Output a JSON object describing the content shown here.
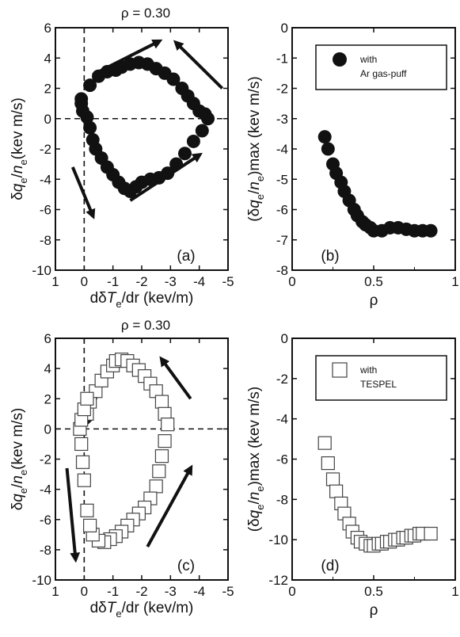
{
  "chart_data": [
    {
      "id": "a",
      "type": "scatter",
      "title": "ρ = 0.30",
      "panel_label": "(a)",
      "xlabel": {
        "p1": "dδ",
        "v": "T",
        "sub": "e",
        "p2": "/dr (kev/m)"
      },
      "ylabel": {
        "p1": "δ",
        "q": "q",
        "sub1": "e",
        "slash": "/",
        "n": "n",
        "sub2": "e",
        "p2": "(kev m/s)"
      },
      "xlim": [
        1,
        -5
      ],
      "ylim": [
        -10,
        6
      ],
      "xticks": [
        1,
        0,
        -1,
        -2,
        -3,
        -4,
        -5
      ],
      "yticks": [
        6,
        4,
        2,
        0,
        -2,
        -4,
        -6,
        -8,
        -10
      ],
      "marker": "filled-circle",
      "guides": {
        "vertical_dashed_x": 0,
        "horizontal_dashed_y": 0
      },
      "x": [
        0.1,
        -0.2,
        -0.5,
        -0.8,
        -1.1,
        -1.3,
        -1.6,
        -1.9,
        -2.2,
        -2.5,
        -2.8,
        -3.1,
        -3.4,
        -3.6,
        -3.8,
        -4.0,
        -4.2,
        -4.3,
        -4.1,
        -3.8,
        -3.5,
        -3.2,
        -2.9,
        -2.6,
        -2.3,
        -2.0,
        -1.8,
        -1.6,
        -1.4,
        -1.2,
        -1.0,
        -0.8,
        -0.6,
        -0.4,
        -0.3,
        -0.2,
        -0.1,
        0.05,
        0.1
      ],
      "y": [
        1.3,
        2.2,
        2.8,
        3.1,
        3.2,
        3.4,
        3.6,
        3.7,
        3.6,
        3.3,
        3.0,
        2.6,
        2.0,
        1.5,
        1.0,
        0.5,
        0.3,
        0.0,
        -0.8,
        -1.5,
        -2.3,
        -3.0,
        -3.6,
        -3.9,
        -4.0,
        -4.2,
        -4.5,
        -4.8,
        -4.6,
        -4.2,
        -3.7,
        -3.2,
        -2.6,
        -2.0,
        -1.4,
        -0.6,
        0.1,
        0.5,
        1.0
      ],
      "arrows": [
        {
          "from": [
            -0.3,
            2.9
          ],
          "to": [
            -2.6,
            5.1
          ]
        },
        {
          "from": [
            -4.8,
            2.0
          ],
          "to": [
            -3.2,
            5.0
          ]
        },
        {
          "from": [
            -1.6,
            -5.4
          ],
          "to": [
            -4.0,
            -2.4
          ]
        },
        {
          "from": [
            0.4,
            -3.2
          ],
          "to": [
            -0.3,
            -6.4
          ]
        }
      ]
    },
    {
      "id": "b",
      "type": "scatter",
      "panel_label": "(b)",
      "xlabel": "ρ",
      "ylabel": {
        "p1": "(δ",
        "q": "q",
        "sub1": "e",
        "slash": "/",
        "n": "n",
        "sub2": "e",
        "p2": ")max (kev m/s)"
      },
      "xlim": [
        0,
        1
      ],
      "ylim": [
        -8,
        0
      ],
      "xticks": [
        0,
        0.5,
        1
      ],
      "yticks": [
        0,
        -1,
        -2,
        -3,
        -4,
        -5,
        -6,
        -7,
        -8
      ],
      "marker": "filled-circle",
      "legend": [
        "with",
        "Ar gas-puff"
      ],
      "legend_position": "top-right",
      "x": [
        0.2,
        0.22,
        0.25,
        0.27,
        0.3,
        0.32,
        0.35,
        0.38,
        0.4,
        0.43,
        0.45,
        0.48,
        0.5,
        0.55,
        0.6,
        0.65,
        0.7,
        0.75,
        0.8,
        0.85
      ],
      "y": [
        -3.6,
        -4.0,
        -4.5,
        -4.8,
        -5.1,
        -5.4,
        -5.7,
        -6.0,
        -6.2,
        -6.4,
        -6.5,
        -6.6,
        -6.7,
        -6.7,
        -6.6,
        -6.6,
        -6.65,
        -6.7,
        -6.7,
        -6.7
      ]
    },
    {
      "id": "c",
      "type": "scatter",
      "title": "ρ = 0.30",
      "panel_label": "(c)",
      "xlabel": {
        "p1": "dδ",
        "v": "T",
        "sub": "e",
        "p2": "/dr (kev/m)"
      },
      "ylabel": {
        "p1": "δ",
        "q": "q",
        "sub1": "e",
        "slash": "/",
        "n": "n",
        "sub2": "e",
        "p2": "(kev m/s)"
      },
      "xlim": [
        1,
        -5
      ],
      "ylim": [
        -10,
        6
      ],
      "xticks": [
        1,
        0,
        -1,
        -2,
        -3,
        -4,
        -5
      ],
      "yticks": [
        6,
        4,
        2,
        0,
        -2,
        -4,
        -6,
        -8,
        -10
      ],
      "marker": "open-square",
      "guides": {
        "vertical_dashed_x": 0,
        "horizontal_dashed_y": 0
      },
      "x": [
        -0.1,
        -0.2,
        -0.4,
        -0.6,
        -0.8,
        -1.0,
        -1.1,
        -1.3,
        -1.5,
        -1.7,
        -1.9,
        -2.1,
        -2.3,
        -2.5,
        -2.7,
        -2.8,
        -2.9,
        -2.8,
        -2.7,
        -2.6,
        -2.5,
        -2.3,
        -2.1,
        -1.9,
        -1.7,
        -1.5,
        -1.3,
        -1.1,
        -0.9,
        -0.7,
        -0.5,
        -0.3,
        -0.2,
        -0.1,
        0.0,
        0.05,
        0.1,
        0.15,
        0.1,
        0.0,
        -0.1
      ],
      "y": [
        1.0,
        1.8,
        2.5,
        3.2,
        3.8,
        4.2,
        4.5,
        4.6,
        4.5,
        4.2,
        3.9,
        3.5,
        3.0,
        2.5,
        1.8,
        1.0,
        0.3,
        -0.8,
        -1.8,
        -2.8,
        -3.8,
        -4.6,
        -5.2,
        -5.6,
        -6.0,
        -6.4,
        -6.8,
        -7.1,
        -7.3,
        -7.5,
        -7.4,
        -7.0,
        -6.4,
        -5.4,
        -3.4,
        -2.2,
        -1.0,
        0.0,
        0.6,
        1.3,
        2.0
      ],
      "arrows": [
        {
          "from": [
            -0.5,
            2.6
          ],
          "to": [
            -0.1,
            0.4
          ]
        },
        {
          "from": [
            -3.7,
            2.0
          ],
          "to": [
            -2.7,
            4.6
          ]
        },
        {
          "from": [
            -2.2,
            -7.8
          ],
          "to": [
            -3.7,
            -2.6
          ]
        },
        {
          "from": [
            0.6,
            -2.6
          ],
          "to": [
            0.3,
            -8.6
          ]
        }
      ]
    },
    {
      "id": "d",
      "type": "scatter",
      "panel_label": "(d)",
      "xlabel": "ρ",
      "ylabel": {
        "p1": "(δ",
        "q": "q",
        "sub1": "e",
        "slash": "/",
        "n": "n",
        "sub2": "e",
        "p2": ")max (kev m/s)"
      },
      "xlim": [
        0,
        1
      ],
      "ylim": [
        -12,
        0
      ],
      "xticks": [
        0,
        0.5,
        1
      ],
      "yticks": [
        0,
        -2,
        -4,
        -6,
        -8,
        -10,
        -12
      ],
      "marker": "open-square",
      "legend": [
        "with",
        "TESPEL"
      ],
      "legend_position": "top-right",
      "x": [
        0.2,
        0.22,
        0.25,
        0.27,
        0.3,
        0.32,
        0.35,
        0.37,
        0.4,
        0.42,
        0.45,
        0.48,
        0.5,
        0.53,
        0.55,
        0.58,
        0.6,
        0.63,
        0.65,
        0.68,
        0.7,
        0.73,
        0.75,
        0.78,
        0.8,
        0.85
      ],
      "y": [
        -5.2,
        -6.2,
        -7.0,
        -7.6,
        -8.2,
        -8.7,
        -9.2,
        -9.6,
        -9.9,
        -10.1,
        -10.2,
        -10.3,
        -10.3,
        -10.2,
        -10.2,
        -10.1,
        -10.1,
        -10.0,
        -10.0,
        -9.9,
        -9.9,
        -9.8,
        -9.8,
        -9.7,
        -9.7,
        -9.7
      ]
    }
  ]
}
